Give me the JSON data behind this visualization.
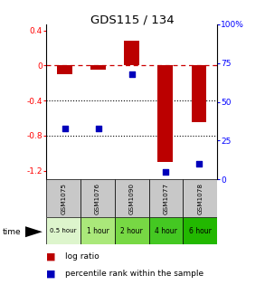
{
  "title": "GDS115 / 134",
  "samples": [
    "GSM1075",
    "GSM1076",
    "GSM1090",
    "GSM1077",
    "GSM1078"
  ],
  "time_labels": [
    "0.5 hour",
    "1 hour",
    "2 hour",
    "4 hour",
    "6 hour"
  ],
  "time_colors": [
    "#ddf5cc",
    "#aae87a",
    "#77d844",
    "#44c822",
    "#22b800"
  ],
  "log_ratio": [
    -0.1,
    -0.05,
    0.28,
    -1.1,
    -0.65
  ],
  "percentile": [
    33,
    33,
    68,
    5,
    10
  ],
  "bar_color": "#bb0000",
  "dot_color": "#0000bb",
  "ylim_left": [
    -1.3,
    0.47
  ],
  "ylim_right": [
    0,
    100
  ],
  "yticks_left": [
    0.4,
    0.0,
    -0.4,
    -0.8,
    -1.2
  ],
  "yticks_right": [
    100,
    75,
    50,
    25,
    0
  ],
  "bar_width": 0.45,
  "header_bg": "#c8c8c8",
  "dot_size": 16
}
